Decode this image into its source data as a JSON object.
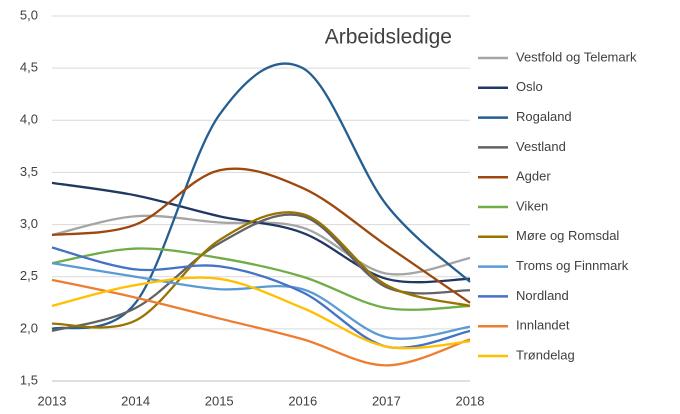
{
  "chart_data": {
    "type": "line",
    "title": "Arbeidsledige",
    "x": [
      2013,
      2014,
      2015,
      2016,
      2017,
      2018
    ],
    "xlim": [
      2013,
      2018
    ],
    "xticks": [
      2013,
      2014,
      2015,
      2016,
      2017,
      2018
    ],
    "ylim": [
      1.5,
      5.0
    ],
    "yticks": [
      {
        "value": 1.5,
        "label": "1,5"
      },
      {
        "value": 2.0,
        "label": "2,0"
      },
      {
        "value": 2.5,
        "label": "2,5"
      },
      {
        "value": 3.0,
        "label": "3,0"
      },
      {
        "value": 3.5,
        "label": "3,5"
      },
      {
        "value": 4.0,
        "label": "4,0"
      },
      {
        "value": 4.5,
        "label": "4,5"
      },
      {
        "value": 5.0,
        "label": "5,0"
      }
    ],
    "grid": true,
    "legend": "right",
    "series": [
      {
        "name": "Vestfold og Telemark",
        "color": "#a5a5a5",
        "values": [
          2.9,
          3.08,
          3.02,
          2.97,
          2.53,
          2.68
        ]
      },
      {
        "name": "Oslo",
        "color": "#1f3864",
        "values": [
          3.4,
          3.28,
          3.08,
          2.92,
          2.48,
          2.48
        ]
      },
      {
        "name": "Rogaland",
        "color": "#255e91",
        "values": [
          2.0,
          2.25,
          4.05,
          4.5,
          3.19,
          2.45
        ]
      },
      {
        "name": "Vestland",
        "color": "#636363",
        "values": [
          1.98,
          2.2,
          2.82,
          3.08,
          2.4,
          2.37
        ]
      },
      {
        "name": "Agder",
        "color": "#9e480e",
        "values": [
          2.9,
          3.0,
          3.52,
          3.35,
          2.8,
          2.25
        ]
      },
      {
        "name": "Viken",
        "color": "#70ad47",
        "values": [
          2.63,
          2.77,
          2.68,
          2.5,
          2.2,
          2.22
        ]
      },
      {
        "name": "Møre og Romsdal",
        "color": "#997300",
        "values": [
          2.05,
          2.08,
          2.85,
          3.1,
          2.42,
          2.22
        ]
      },
      {
        "name": "Troms og Finnmark",
        "color": "#5b9bd5",
        "values": [
          2.63,
          2.5,
          2.38,
          2.38,
          1.92,
          2.02
        ]
      },
      {
        "name": "Nordland",
        "color": "#4472c4",
        "values": [
          2.78,
          2.57,
          2.6,
          2.35,
          1.83,
          1.98
        ]
      },
      {
        "name": "Innlandet",
        "color": "#ed7d31",
        "values": [
          2.47,
          2.3,
          2.1,
          1.9,
          1.65,
          1.9
        ]
      },
      {
        "name": "Trøndelag",
        "color": "#ffc000",
        "values": [
          2.22,
          2.42,
          2.48,
          2.2,
          1.83,
          1.88
        ]
      }
    ]
  }
}
